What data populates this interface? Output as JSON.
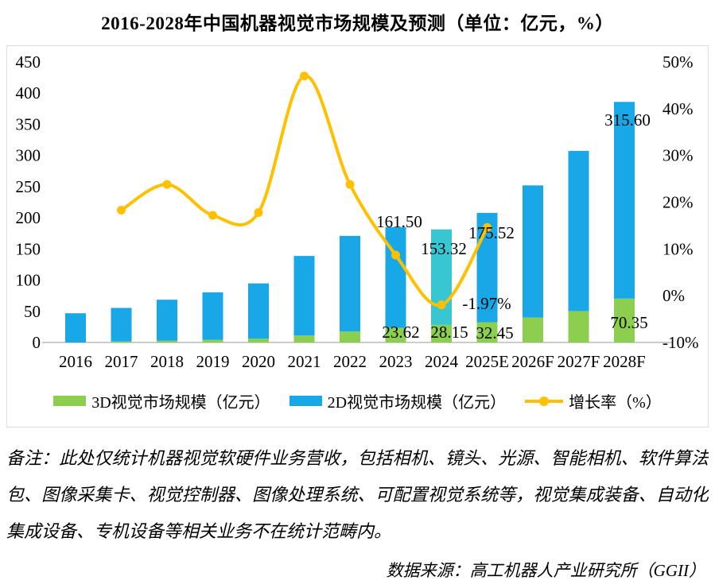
{
  "title": "2016-2028年中国机器视觉市场规模及预测（单位：亿元，%）",
  "chart_data": {
    "type": "bar",
    "subtype": "stacked-bars-with-line-overlay",
    "title": "2016-2028年中国机器视觉市场规模及预测（单位：亿元，%）",
    "categories": [
      "2016",
      "2017",
      "2018",
      "2019",
      "2020",
      "2021",
      "2022",
      "2023",
      "2024",
      "2025E",
      "2026F",
      "2027F",
      "2028F"
    ],
    "series": [
      {
        "name": "3D视觉市场规模（亿元）",
        "type": "bar",
        "stack": "total",
        "color": "#8CCE4D",
        "values": [
          0,
          1.7,
          2.8,
          4.2,
          6.0,
          11.2,
          17.5,
          23.62,
          28.15,
          32.45,
          40.0,
          50.4,
          70.35
        ]
      },
      {
        "name": "2D视觉市场规模（亿元）",
        "type": "bar",
        "stack": "total",
        "color": "#18A8E8",
        "highlight_index": 8,
        "highlight_color": "#38C6D2",
        "values": [
          46.9,
          53.7,
          65.8,
          76.3,
          88.8,
          127.6,
          153.5,
          161.5,
          153.32,
          175.52,
          212.0,
          257.0,
          315.6
        ]
      },
      {
        "name": "增长率（%）",
        "type": "line",
        "axis": "right",
        "color": "#FFC000",
        "values": [
          null,
          18.3,
          23.8,
          17.2,
          17.8,
          47.0,
          23.8,
          8.7,
          -1.97,
          14.6,
          null,
          null,
          null
        ]
      }
    ],
    "left_axis": {
      "min": 0,
      "max": 450,
      "step": 50,
      "tick_labels": [
        "0",
        "50",
        "100",
        "150",
        "200",
        "250",
        "300",
        "350",
        "400",
        "450"
      ]
    },
    "right_axis": {
      "min": -10,
      "max": 50,
      "step": 10,
      "tick_labels": [
        "-10%",
        "0%",
        "10%",
        "20%",
        "30%",
        "40%",
        "50%"
      ]
    },
    "point_labels": [
      {
        "series": "2D",
        "index": 7,
        "text": "161.50"
      },
      {
        "series": "2D",
        "index": 8,
        "text": "153.32"
      },
      {
        "series": "2D",
        "index": 9,
        "text": "175.52"
      },
      {
        "series": "2D",
        "index": 12,
        "text": "315.60"
      },
      {
        "series": "3D",
        "index": 7,
        "text": "23.62"
      },
      {
        "series": "3D",
        "index": 8,
        "text": "28.15"
      },
      {
        "series": "3D",
        "index": 9,
        "text": "32.45"
      },
      {
        "series": "3D",
        "index": 12,
        "text": "70.35"
      },
      {
        "series": "growth",
        "index": 8,
        "text": "-1.97%"
      }
    ],
    "grid": false,
    "legend_position": "bottom"
  },
  "legend": {
    "items": [
      {
        "label": "3D视觉市场规模（亿元）",
        "color": "#8CCE4D",
        "type": "bar"
      },
      {
        "label": "2D视觉市场规模（亿元）",
        "color": "#18A8E8",
        "type": "bar"
      },
      {
        "label": "增长率（%）",
        "color": "#FFC000",
        "type": "line"
      }
    ]
  },
  "notes": {
    "line1": "备注：此处仅统计机器视觉软硬件业务营收，包括相机、镜头、光源、智能相机、软件算法",
    "line2": "包、图像采集卡、视觉控制器、图像处理系统、可配置视觉系统等，视觉集成装备、自动化",
    "line3": "集成设备、专机设备等相关业务不在统计范畴内。"
  },
  "source": "数据来源：高工机器人产业研究所（GGII）",
  "colors": {
    "bar_2d": "#18A8E8",
    "bar_2d_2024_highlight": "#38C6D2",
    "bar_3d": "#8CCE4D",
    "growth_line": "#FFC000",
    "axis_line": "#CCCCCC",
    "frame_border": "#DCDCDC",
    "text": "#000000"
  }
}
